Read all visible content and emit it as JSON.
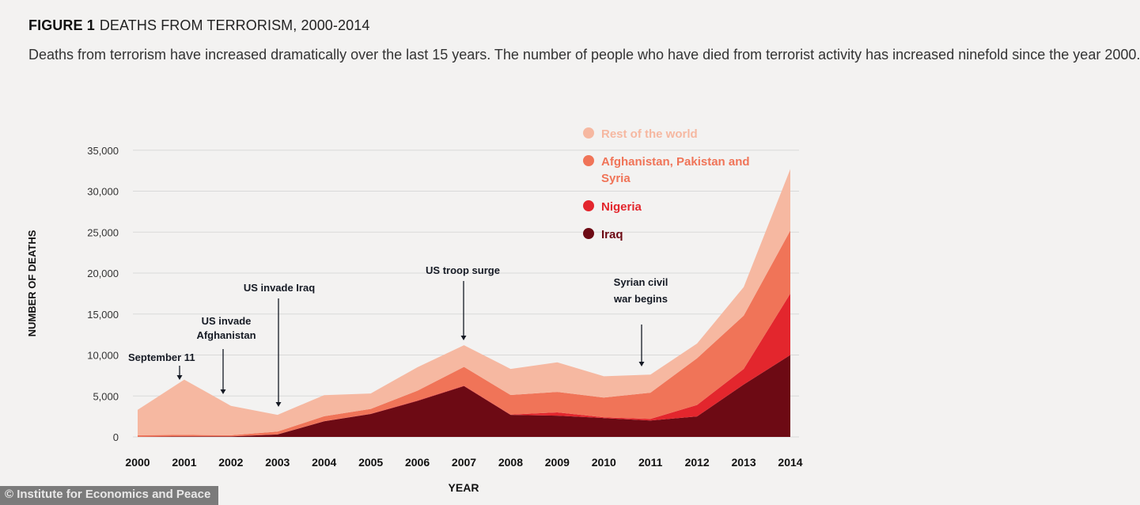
{
  "header": {
    "figure_label": "FIGURE 1",
    "figure_title": "DEATHS FROM TERRORISM, 2000-2014",
    "subtitle": "Deaths from terrorism have increased dramatically over the last 15 years. The number of people who have died from terrorist activity has increased ninefold since the year 2000."
  },
  "credit": "© Institute for Economics and Peace",
  "colors": {
    "iraq": "#6d0a14",
    "nigeria": "#e3262d",
    "afghanistan_pakistan_syria": "#f07458",
    "rest_of_world": "#f6b8a1",
    "text": "#222222",
    "gridline": "#d9d9d9"
  },
  "chart_data": {
    "type": "area",
    "stacked": true,
    "xlabel": "YEAR",
    "ylabel": "NUMBER OF DEATHS",
    "x": [
      2000,
      2001,
      2002,
      2003,
      2004,
      2005,
      2006,
      2007,
      2008,
      2009,
      2010,
      2011,
      2012,
      2013,
      2014
    ],
    "x_tick_labels": [
      "2000",
      "2001",
      "2002",
      "2003",
      "2004",
      "2005",
      "2006",
      "2007",
      "2008",
      "2009",
      "2010",
      "2011",
      "2012",
      "2013",
      "2014"
    ],
    "y_ticks": [
      0,
      5000,
      10000,
      15000,
      20000,
      25000,
      30000,
      35000
    ],
    "y_tick_labels": [
      "0",
      "5,000",
      "10,000",
      "15,000",
      "20,000",
      "25,000",
      "30,000",
      "35,000"
    ],
    "ylim": [
      0,
      37000
    ],
    "grid": true,
    "legend_position": "top-right",
    "series": [
      {
        "key": "iraq",
        "name": "Iraq",
        "values": [
          10,
          60,
          60,
          300,
          1900,
          2800,
          4400,
          6200,
          2700,
          2600,
          2300,
          2000,
          2500,
          6400,
          10000
        ]
      },
      {
        "key": "nigeria",
        "name": "Nigeria",
        "values": [
          20,
          20,
          10,
          10,
          20,
          20,
          40,
          50,
          20,
          400,
          100,
          200,
          1400,
          1900,
          7500
        ]
      },
      {
        "key": "afghanistan_pakistan_syria",
        "name": "Afghanistan, Pakistan and Syria",
        "values": [
          170,
          170,
          130,
          340,
          600,
          600,
          1200,
          2300,
          2400,
          2500,
          2400,
          3200,
          5700,
          6500,
          7700
        ]
      },
      {
        "key": "rest_of_world",
        "name": "Rest of the world",
        "values": [
          3100,
          6750,
          3600,
          2050,
          2580,
          1880,
          2860,
          2650,
          3180,
          3600,
          2600,
          2200,
          1800,
          3500,
          7500
        ]
      }
    ],
    "annotations": [
      {
        "text": "September 11",
        "x": 2001
      },
      {
        "text": "US invade Afghanistan",
        "x": 2001.8
      },
      {
        "text": "US invade Iraq",
        "x": 2003
      },
      {
        "text": "US troop surge",
        "x": 2007
      },
      {
        "text": "Syrian civil war begins",
        "x": 2010.8
      }
    ]
  }
}
